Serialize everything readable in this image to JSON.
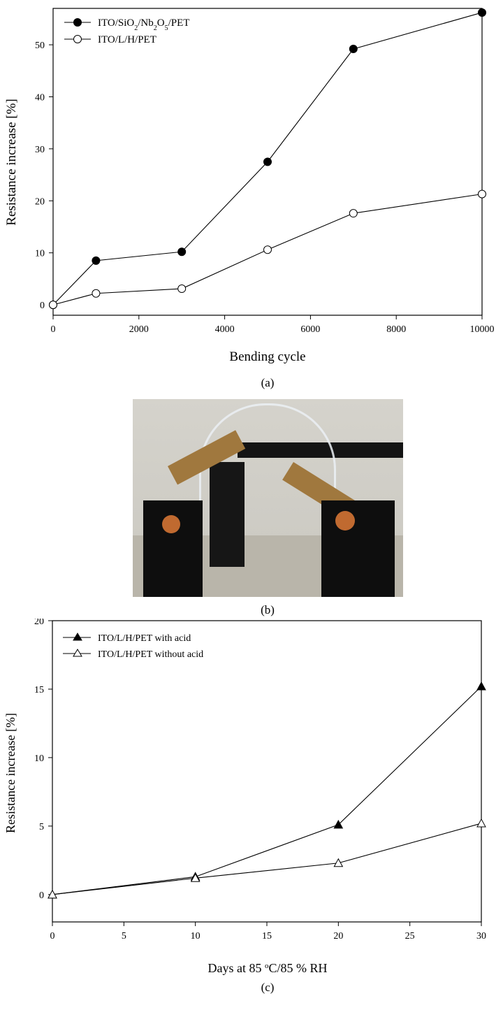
{
  "panels": {
    "a": {
      "caption": "(a)"
    },
    "b": {
      "caption": "(b)"
    },
    "c": {
      "caption": "(c)"
    }
  },
  "chart_data": [
    {
      "type": "line",
      "panel": "a",
      "xlabel": "Bending cycle",
      "ylabel": "Resistance increase [%]",
      "xlim": [
        0,
        10000
      ],
      "ylim": [
        -2,
        57
      ],
      "xticks": [
        "0",
        "2000",
        "4000",
        "6000",
        "8000",
        "10000"
      ],
      "yticks": [
        "0",
        "10",
        "20",
        "30",
        "40",
        "50"
      ],
      "legend_position": "top-left",
      "grid": false,
      "x": [
        0,
        1000,
        3000,
        5000,
        7000,
        10000
      ],
      "series": [
        {
          "name": "ITO/SiO2/Nb2O5/PET",
          "name_parts": [
            "ITO/SiO",
            "2",
            "/Nb",
            "2",
            "O",
            "5",
            "/PET"
          ],
          "marker": "filled-circle",
          "values": [
            0,
            8.5,
            10.2,
            27.5,
            49.2,
            56.2
          ]
        },
        {
          "name": "ITO/L/H/PET",
          "marker": "open-circle",
          "values": [
            0,
            2.2,
            3.1,
            10.6,
            17.6,
            21.3
          ]
        }
      ]
    },
    {
      "type": "line",
      "panel": "c",
      "xlabel": "Days at 85 °C/85 % RH",
      "xlabel_parts": [
        "Days at 85 ",
        "o",
        "C/85 % RH"
      ],
      "ylabel": "Resistance increase [%]",
      "xlim": [
        0,
        30
      ],
      "ylim": [
        -2,
        20
      ],
      "xticks": [
        "0",
        "5",
        "10",
        "15",
        "20",
        "25",
        "30"
      ],
      "yticks": [
        "0",
        "5",
        "10",
        "15",
        "20"
      ],
      "legend_position": "top-left",
      "grid": false,
      "x": [
        0,
        10,
        20,
        30
      ],
      "series": [
        {
          "name": "ITO/L/H/PET with acid",
          "marker": "filled-triangle",
          "values": [
            0,
            1.3,
            5.1,
            15.2
          ]
        },
        {
          "name": "ITO/L/H/PET without acid",
          "marker": "open-triangle",
          "values": [
            0,
            1.2,
            2.3,
            5.2
          ]
        }
      ]
    }
  ]
}
